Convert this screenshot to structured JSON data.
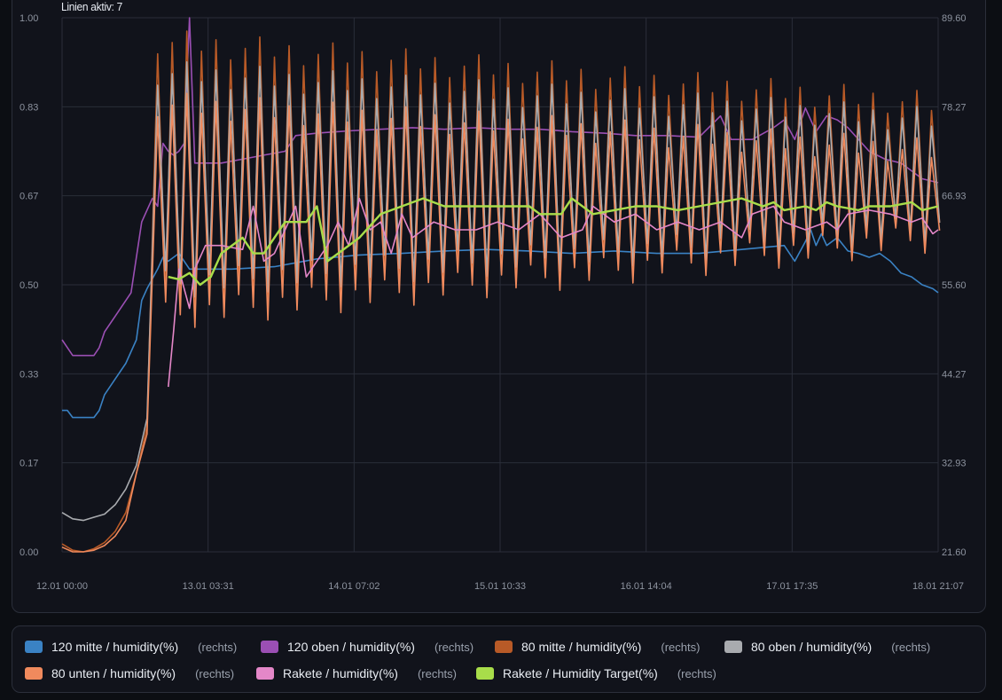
{
  "header": {
    "label": "Linien aktiv: 7"
  },
  "chart_data": {
    "type": "line",
    "xlabel": "",
    "ylabel": "",
    "x_ticks": [
      "12.01 00:00",
      "13.01 03:31",
      "14.01 07:02",
      "15.01 10:33",
      "16.01 14:04",
      "17.01 17:35",
      "18.01 21:07"
    ],
    "y_left_ticks": [
      "0.00",
      "0.17",
      "0.33",
      "0.50",
      "0.67",
      "0.83",
      "1.00"
    ],
    "y_right_ticks": [
      "21.60",
      "32.93",
      "44.27",
      "55.60",
      "66.93",
      "78.27",
      "89.60"
    ],
    "y_left_range": [
      0,
      1
    ],
    "y_right_range": [
      21.6,
      89.6
    ],
    "x_range_hours": [
      0,
      165
    ],
    "grid": true,
    "legend_placement": "bottom",
    "series": [
      {
        "name": "120 mitte / humidity(%)",
        "axis": "(rechts)",
        "color": "#3a82c4",
        "kind": "steady",
        "points": [
          [
            0,
            39.6
          ],
          [
            1,
            39.6
          ],
          [
            2,
            38.7
          ],
          [
            3,
            38.7
          ],
          [
            6,
            38.7
          ],
          [
            7,
            39.6
          ],
          [
            8,
            41.6
          ],
          [
            10,
            43.6
          ],
          [
            12,
            45.6
          ],
          [
            14,
            48.6
          ],
          [
            15,
            53.6
          ],
          [
            16,
            55.1
          ],
          [
            18,
            57.6
          ],
          [
            19,
            59.1
          ],
          [
            20,
            58.6
          ],
          [
            22,
            59.6
          ],
          [
            24,
            57.6
          ],
          [
            28,
            57.6
          ],
          [
            32,
            57.6
          ],
          [
            40,
            57.9
          ],
          [
            48,
            58.9
          ],
          [
            56,
            59.4
          ],
          [
            64,
            59.6
          ],
          [
            72,
            59.9
          ],
          [
            80,
            60.1
          ],
          [
            88,
            59.9
          ],
          [
            96,
            59.6
          ],
          [
            104,
            59.9
          ],
          [
            112,
            59.6
          ],
          [
            120,
            59.6
          ],
          [
            128,
            60.1
          ],
          [
            136,
            60.6
          ],
          [
            138,
            58.6
          ],
          [
            140,
            61.1
          ],
          [
            141,
            62.6
          ],
          [
            142,
            60.6
          ],
          [
            143,
            62.1
          ],
          [
            144,
            60.6
          ],
          [
            146,
            61.6
          ],
          [
            148,
            59.9
          ],
          [
            150,
            59.6
          ],
          [
            152,
            59.1
          ],
          [
            154,
            59.6
          ],
          [
            156,
            58.6
          ],
          [
            158,
            57.1
          ],
          [
            160,
            56.6
          ],
          [
            162,
            55.6
          ],
          [
            164,
            55.1
          ],
          [
            165,
            54.6
          ]
        ]
      },
      {
        "name": "120 oben / humidity(%)",
        "axis": "(rechts)",
        "color": "#9b4fb4",
        "kind": "steady",
        "points": [
          [
            0,
            48.6
          ],
          [
            1,
            47.6
          ],
          [
            2,
            46.6
          ],
          [
            3,
            46.6
          ],
          [
            6,
            46.6
          ],
          [
            7,
            47.6
          ],
          [
            8,
            49.6
          ],
          [
            10,
            51.6
          ],
          [
            13,
            54.6
          ],
          [
            15,
            63.6
          ],
          [
            17,
            66.6
          ],
          [
            18,
            65.6
          ],
          [
            19,
            73.6
          ],
          [
            20,
            72.6
          ],
          [
            21,
            72.1
          ],
          [
            22,
            72.6
          ],
          [
            23,
            73.6
          ],
          [
            24,
            89.6
          ],
          [
            25,
            71.1
          ],
          [
            27,
            71.1
          ],
          [
            30,
            71.1
          ],
          [
            34,
            71.6
          ],
          [
            38,
            72.1
          ],
          [
            42,
            72.6
          ],
          [
            44,
            74.6
          ],
          [
            48,
            74.9
          ],
          [
            54,
            75.2
          ],
          [
            60,
            75.4
          ],
          [
            66,
            75.6
          ],
          [
            72,
            75.4
          ],
          [
            78,
            75.6
          ],
          [
            84,
            75.4
          ],
          [
            90,
            75.4
          ],
          [
            96,
            75.1
          ],
          [
            102,
            74.9
          ],
          [
            108,
            74.6
          ],
          [
            114,
            74.6
          ],
          [
            120,
            74.4
          ],
          [
            124,
            77.1
          ],
          [
            126,
            74.1
          ],
          [
            130,
            74.1
          ],
          [
            134,
            75.6
          ],
          [
            136,
            76.6
          ],
          [
            138,
            74.1
          ],
          [
            140,
            78.1
          ],
          [
            142,
            75.1
          ],
          [
            144,
            77.1
          ],
          [
            146,
            76.6
          ],
          [
            148,
            75.6
          ],
          [
            150,
            74.1
          ],
          [
            152,
            72.6
          ],
          [
            155,
            71.6
          ],
          [
            158,
            71.1
          ],
          [
            160,
            70.1
          ],
          [
            162,
            69.1
          ],
          [
            165,
            68.6
          ]
        ]
      },
      {
        "name": "80 mitte / humidity(%)",
        "axis": "(rechts)",
        "color": "#b85a27",
        "kind": "oscillating",
        "pre": [
          [
            0,
            22.6
          ],
          [
            2,
            21.8
          ],
          [
            4,
            21.6
          ],
          [
            6,
            22.0
          ],
          [
            8,
            22.8
          ],
          [
            10,
            24.2
          ],
          [
            12,
            26.6
          ],
          [
            14,
            31.6
          ],
          [
            16,
            37.6
          ]
        ],
        "osc_start": 18,
        "osc_end": 165,
        "period": 2.75,
        "high": 86.6,
        "low": 52.6,
        "high_end": 78.6,
        "low_end": 62.6
      },
      {
        "name": "80 oben / humidity(%)",
        "axis": "(rechts)",
        "color": "#a9abaf",
        "kind": "oscillating",
        "pre": [
          [
            0,
            26.6
          ],
          [
            2,
            25.8
          ],
          [
            4,
            25.6
          ],
          [
            6,
            26.0
          ],
          [
            8,
            26.4
          ],
          [
            10,
            27.6
          ],
          [
            12,
            29.6
          ],
          [
            14,
            32.6
          ],
          [
            16,
            38.6
          ]
        ],
        "osc_start": 18,
        "osc_end": 165,
        "period": 2.75,
        "high": 82.6,
        "low": 55.6,
        "high_end": 76.6,
        "low_end": 62.6
      },
      {
        "name": "80 unten / humidity(%)",
        "axis": "(rechts)",
        "color": "#f08a5d",
        "kind": "oscillating",
        "pre": [
          [
            0,
            22.2
          ],
          [
            2,
            21.6
          ],
          [
            4,
            21.6
          ],
          [
            6,
            21.8
          ],
          [
            8,
            22.4
          ],
          [
            10,
            23.6
          ],
          [
            12,
            25.6
          ],
          [
            14,
            31.6
          ],
          [
            16,
            36.6
          ]
        ],
        "osc_start": 18,
        "osc_end": 165,
        "period": 2.75,
        "high": 78.6,
        "low": 51.6,
        "high_end": 72.6,
        "low_end": 61.6
      },
      {
        "name": "Rakete / humidity(%)",
        "axis": "(rechts)",
        "color": "#e487c8",
        "kind": "steady",
        "points": [
          [
            20,
            42.6
          ],
          [
            21,
            49.6
          ],
          [
            22,
            57.6
          ],
          [
            24,
            52.6
          ],
          [
            25,
            57.6
          ],
          [
            27,
            60.6
          ],
          [
            30,
            60.6
          ],
          [
            34,
            60.1
          ],
          [
            36,
            65.6
          ],
          [
            38,
            58.6
          ],
          [
            40,
            59.6
          ],
          [
            44,
            65.6
          ],
          [
            46,
            56.6
          ],
          [
            48,
            58.6
          ],
          [
            50,
            60.6
          ],
          [
            52,
            63.6
          ],
          [
            54,
            60.6
          ],
          [
            56,
            66.6
          ],
          [
            58,
            62.6
          ],
          [
            60,
            63.6
          ],
          [
            62,
            59.6
          ],
          [
            64,
            64.6
          ],
          [
            66,
            61.6
          ],
          [
            70,
            63.6
          ],
          [
            74,
            62.6
          ],
          [
            78,
            62.6
          ],
          [
            82,
            63.6
          ],
          [
            86,
            62.6
          ],
          [
            90,
            64.6
          ],
          [
            94,
            61.6
          ],
          [
            98,
            62.6
          ],
          [
            100,
            65.6
          ],
          [
            104,
            63.6
          ],
          [
            108,
            64.6
          ],
          [
            112,
            62.6
          ],
          [
            116,
            63.6
          ],
          [
            120,
            62.6
          ],
          [
            124,
            63.6
          ],
          [
            128,
            61.6
          ],
          [
            130,
            64.6
          ],
          [
            134,
            65.6
          ],
          [
            136,
            63.6
          ],
          [
            140,
            62.6
          ],
          [
            144,
            63.6
          ],
          [
            146,
            62.6
          ],
          [
            148,
            64.6
          ],
          [
            152,
            65.1
          ],
          [
            156,
            64.6
          ],
          [
            160,
            63.6
          ],
          [
            162,
            64.1
          ],
          [
            164,
            62.1
          ],
          [
            165,
            62.6
          ]
        ]
      },
      {
        "name": "Rakete / Humidity Target(%)",
        "axis": "(rechts)",
        "color": "#a8dd4a",
        "kind": "steady",
        "points": [
          [
            20,
            56.6
          ],
          [
            22,
            56.3
          ],
          [
            24,
            57.1
          ],
          [
            26,
            55.6
          ],
          [
            28,
            56.6
          ],
          [
            30,
            59.6
          ],
          [
            34,
            61.6
          ],
          [
            36,
            59.6
          ],
          [
            38,
            59.6
          ],
          [
            42,
            63.6
          ],
          [
            46,
            63.6
          ],
          [
            48,
            65.6
          ],
          [
            50,
            58.6
          ],
          [
            52,
            59.6
          ],
          [
            56,
            61.6
          ],
          [
            60,
            64.6
          ],
          [
            64,
            65.6
          ],
          [
            68,
            66.6
          ],
          [
            72,
            65.6
          ],
          [
            76,
            65.6
          ],
          [
            80,
            65.6
          ],
          [
            84,
            65.6
          ],
          [
            88,
            65.6
          ],
          [
            90,
            64.6
          ],
          [
            94,
            64.6
          ],
          [
            96,
            66.6
          ],
          [
            100,
            64.6
          ],
          [
            104,
            65.1
          ],
          [
            108,
            65.6
          ],
          [
            112,
            65.6
          ],
          [
            116,
            65.1
          ],
          [
            120,
            65.6
          ],
          [
            124,
            66.1
          ],
          [
            128,
            66.6
          ],
          [
            132,
            65.6
          ],
          [
            134,
            66.1
          ],
          [
            136,
            65.1
          ],
          [
            140,
            65.6
          ],
          [
            142,
            65.1
          ],
          [
            144,
            66.1
          ],
          [
            146,
            65.6
          ],
          [
            150,
            65.1
          ],
          [
            152,
            65.6
          ],
          [
            156,
            65.6
          ],
          [
            160,
            66.1
          ],
          [
            162,
            65.1
          ],
          [
            165,
            65.6
          ]
        ]
      }
    ]
  }
}
